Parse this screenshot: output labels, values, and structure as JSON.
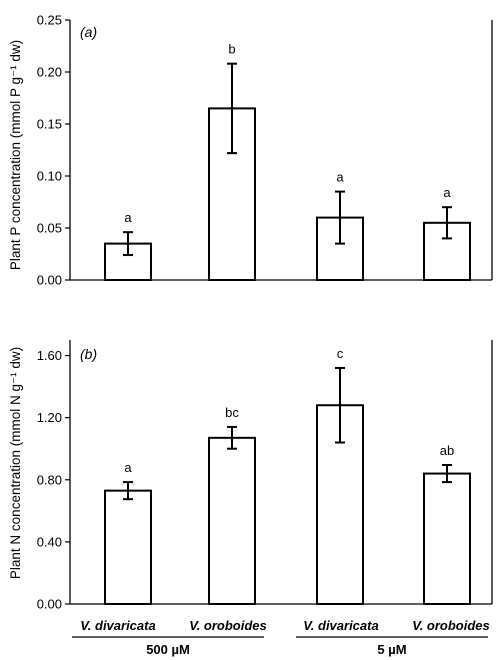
{
  "chart_data": [
    {
      "type": "bar",
      "panel_label": "(a)",
      "ylabel": "Plant P concentration (mmol P g⁻¹ dw)",
      "ylim": [
        0,
        0.25
      ],
      "yticks": [
        0,
        0.05,
        0.1,
        0.15,
        0.2,
        0.25
      ],
      "ytick_labels": [
        "0.00",
        "0.05",
        "0.10",
        "0.15",
        "0.20",
        "0.25"
      ],
      "categories": [
        "V. divaricata",
        "V. oroboides",
        "V. divaricata",
        "V. oroboides"
      ],
      "values": [
        0.035,
        0.165,
        0.06,
        0.055
      ],
      "errors": [
        0.011,
        0.043,
        0.025,
        0.015
      ],
      "significance": [
        "a",
        "b",
        "a",
        "a"
      ],
      "grid": false,
      "bar_fill": "#ffffff",
      "bar_stroke": "#000000"
    },
    {
      "type": "bar",
      "panel_label": "(b)",
      "ylabel": "Plant N concentration (mmol N g⁻¹ dw)",
      "ylim": [
        0,
        1.7
      ],
      "yticks": [
        0,
        0.4,
        0.8,
        1.2,
        1.6
      ],
      "ytick_labels": [
        "0.00",
        "0.40",
        "0.80",
        "1.20",
        "1.60"
      ],
      "categories": [
        "V. divaricata",
        "V. oroboides",
        "V. divaricata",
        "V. oroboides"
      ],
      "values": [
        0.73,
        1.07,
        1.28,
        0.84
      ],
      "errors": [
        0.055,
        0.07,
        0.24,
        0.055
      ],
      "significance": [
        "a",
        "bc",
        "c",
        "ab"
      ],
      "grid": false,
      "bar_fill": "#ffffff",
      "bar_stroke": "#000000"
    }
  ],
  "x_axis": {
    "category_labels": [
      "V. divaricata",
      "V. oroboides",
      "V. divaricata",
      "V. oroboides"
    ],
    "groups": [
      "500 µM",
      "5 µM"
    ]
  }
}
